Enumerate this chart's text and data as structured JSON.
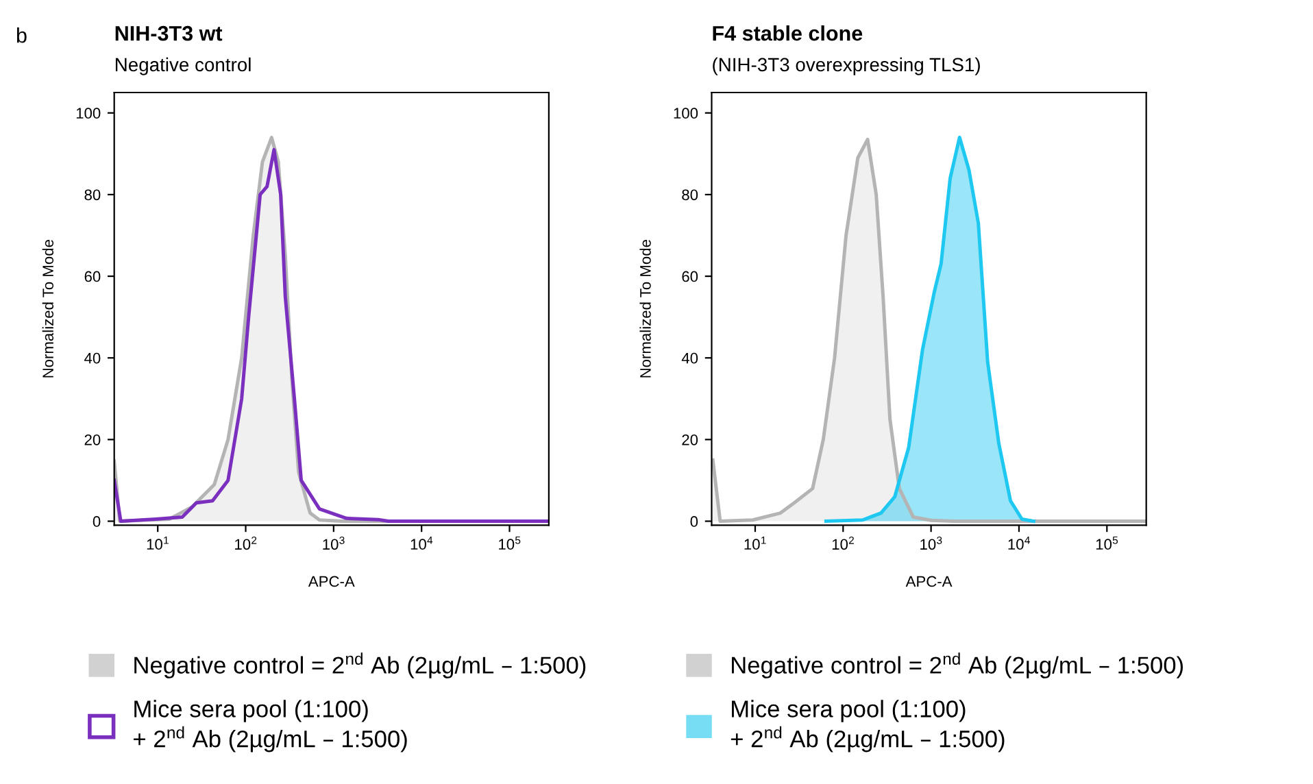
{
  "chart_data": [
    {
      "type": "area",
      "title": "NIH-3T3 wt",
      "subtitle": "Negative control",
      "xlabel": "APC-A",
      "ylabel": "Normalized To Mode",
      "annotations": [
        "b"
      ],
      "log": "x",
      "grid": false,
      "legend": "bottom",
      "marker": "none",
      "line_style": "solid",
      "xlim": [
        3.2,
        280000
      ],
      "ylim": [
        -1,
        105
      ],
      "xticks": [
        {
          "value": 10,
          "label": "10$^{1}$"
        },
        {
          "value": 100,
          "label": "10$^{2}$"
        },
        {
          "value": 1000,
          "label": "10$^{3}$"
        },
        {
          "value": 10000,
          "label": "10$^{4}$"
        },
        {
          "value": 100000,
          "label": "10$^{5}$"
        }
      ],
      "yticks": [
        0,
        20,
        40,
        60,
        80,
        100
      ],
      "series": [
        {
          "name": "Negative control = 2$^{nd}$ Ab (2µg/mL – 1:500)",
          "color": "#b4b4b4",
          "x": [
            3.2,
            3.7,
            13.5,
            24.5,
            44,
            63,
            90,
            122,
            155,
            197,
            235,
            282,
            335,
            400,
            540,
            690,
            1260,
            280000
          ],
          "values": [
            14.7,
            0,
            0.5,
            3.5,
            9,
            20,
            40,
            70,
            88,
            94,
            88,
            65,
            35,
            12,
            2,
            0.3,
            0,
            0
          ]
        },
        {
          "name": "Mice sera pool (1:100)\n+ 2$^{nd}$ Ab (2µg/mL – 1:500)",
          "type": "line",
          "color": "#7b2fbe",
          "x": [
            3.2,
            3.8,
            9.5,
            19,
            27.5,
            42,
            63,
            90,
            108,
            146,
            175,
            210,
            250,
            282,
            358,
            428,
            690,
            1400,
            3200,
            4200,
            280000
          ],
          "values": [
            10,
            0,
            0.5,
            1,
            4.5,
            5,
            10,
            30,
            50,
            80,
            82,
            91,
            80,
            55,
            30,
            10,
            3,
            0.7,
            0.4,
            0,
            0
          ]
        }
      ]
    },
    {
      "type": "area",
      "title": "F4 stable clone",
      "subtitle": "(NIH-3T3 overexpressing TLS1)",
      "xlabel": "APC-A",
      "ylabel": "Normalized To Mode",
      "log": "x",
      "grid": false,
      "legend": "bottom",
      "marker": "none",
      "line_style": "solid",
      "xlim": [
        3.2,
        280000
      ],
      "ylim": [
        -1,
        105
      ],
      "xticks": [
        {
          "value": 10,
          "label": "10$^{1}$"
        },
        {
          "value": 100,
          "label": "10$^{2}$"
        },
        {
          "value": 1000,
          "label": "10$^{3}$"
        },
        {
          "value": 10000,
          "label": "10$^{4}$"
        },
        {
          "value": 100000,
          "label": "10$^{5}$"
        }
      ],
      "yticks": [
        0,
        20,
        40,
        60,
        80,
        100
      ],
      "series": [
        {
          "name": "Negative control = 2$^{nd}$ Ab (2µg/mL – 1:500)",
          "color": "#b4b4b4",
          "x": [
            3.3,
            4.0,
            9.4,
            19.4,
            27.8,
            45,
            59.5,
            80,
            108,
            147,
            190,
            238,
            285,
            341,
            436,
            629,
            1000,
            1800,
            280000
          ],
          "values": [
            15,
            0,
            0.3,
            2,
            4.5,
            8,
            20,
            40,
            70,
            89,
            93.5,
            80,
            55,
            25,
            8,
            1,
            0.2,
            0,
            0
          ]
        },
        {
          "name": "Mice sera pool (1:100)\n+ 2$^{nd}$ Ab (2µg/mL – 1:500)",
          "color": "#1ec8f0",
          "x": [
            64,
            167,
            270,
            387,
            556,
            800,
            1085,
            1300,
            1650,
            2110,
            2700,
            3450,
            4400,
            5900,
            8000,
            10800,
            14700
          ],
          "values": [
            0,
            0.3,
            2,
            6,
            18,
            42,
            56,
            63,
            84,
            94,
            86,
            73,
            39,
            19,
            5,
            0.5,
            0
          ]
        }
      ]
    }
  ]
}
